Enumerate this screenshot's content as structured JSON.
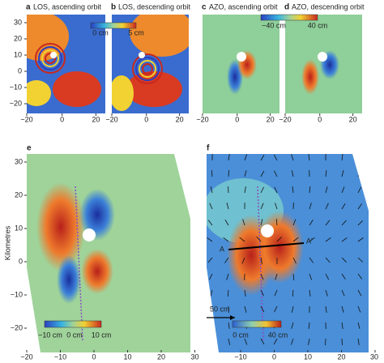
{
  "panels": [
    {
      "letter": "a",
      "title": "LOS, ascending orbit"
    },
    {
      "letter": "b",
      "title": "LOS, descending orbit"
    },
    {
      "letter": "c",
      "title": "AZO, ascending orbit"
    },
    {
      "letter": "d",
      "title": "AZO, descending orbit"
    },
    {
      "letter": "e"
    },
    {
      "letter": "f"
    }
  ],
  "colorbars": [
    {
      "labels": [
        "0 cm",
        "5 cm"
      ]
    },
    {
      "labels": [
        "−40 cm",
        "40 cm"
      ]
    },
    {
      "labels": [
        "−10 cm",
        "0 cm",
        "10 cm"
      ]
    },
    {
      "labels": [
        "0 cm",
        "40 cm"
      ]
    }
  ],
  "top_axes": {
    "yticks": [
      "30",
      "20",
      "10",
      "0",
      "−10",
      "−20"
    ],
    "xticks": [
      "−20",
      "0",
      "20"
    ]
  },
  "bottom_axes": {
    "ylabel": "Kilometres",
    "yticks": [
      "30",
      "20",
      "10",
      "0",
      "−10",
      "−20"
    ],
    "e_xticks": [
      "−20",
      "−10",
      "0",
      "10",
      "20",
      "30"
    ],
    "f_xticks": [
      "−10",
      "0",
      "10",
      "20",
      "30"
    ]
  },
  "annotations": {
    "profile_start": "A",
    "profile_end": "A′",
    "scale_arrow": "50 cm"
  }
}
